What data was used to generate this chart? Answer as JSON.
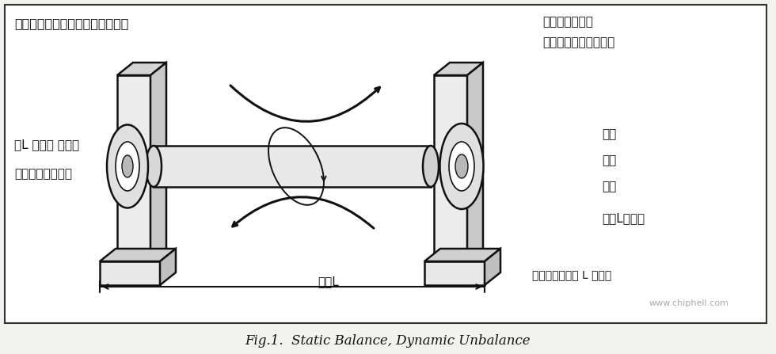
{
  "title": "Fig.1.  Static Balance, Dynamic Unbalance",
  "top_left_text": "这玩意转起来的时候，会有个摆动",
  "mid_left_text1": "当L 足够短 的时候",
  "mid_left_text2": "这个摆动可以忽略",
  "top_right_text1": "要消除这个摆动",
  "top_right_text2": "才是真正的二面动平衡",
  "right_list": [
    "车轮",
    "风扇",
    "水泵"
  ],
  "right_bottom": "都是L比较短",
  "right_bottom2": "发动机曲轴才是 L 比较长",
  "bottom_label": "长度L",
  "website": "www.chiphell.com",
  "bg_color": "#f2f2ee",
  "border_color": "#333333",
  "line_color": "#111111",
  "text_color": "#111111"
}
